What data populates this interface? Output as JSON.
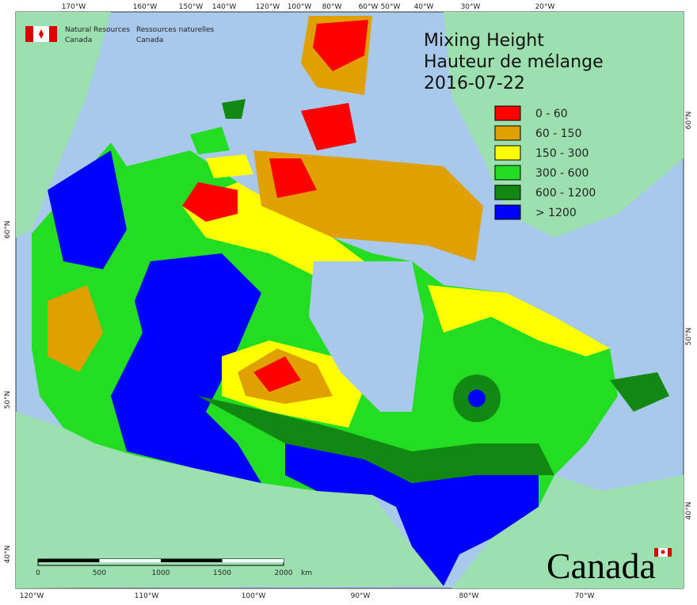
{
  "header": {
    "agency_en": [
      "Natural Resources",
      "Canada"
    ],
    "agency_fr": [
      "Ressources naturelles",
      "Canada"
    ]
  },
  "title": [
    "Mixing Height",
    "Hauteur de mélange",
    "2016-07-22"
  ],
  "legend": [
    {
      "label": "0 - 60",
      "color": "#ff0000"
    },
    {
      "label": "60 - 150",
      "color": "#e0a000"
    },
    {
      "label": "150 - 300",
      "color": "#ffff00"
    },
    {
      "label": "300 - 600",
      "color": "#22dd22"
    },
    {
      "label": "600 - 1200",
      "color": "#118811"
    },
    {
      "label": "> 1200",
      "color": "#0000ff"
    }
  ],
  "graticule": {
    "top": [
      "170°W",
      "160°W",
      "150°W",
      "140°W",
      "120°W",
      "100°W",
      "80°W",
      "60°W",
      "50°W",
      "40°W",
      "30°W",
      "20°W"
    ],
    "bottom": [
      "120°W",
      "110°W",
      "100°W",
      "90°W",
      "80°W",
      "70°W"
    ],
    "left": [
      "60°N",
      "50°N",
      "40°N"
    ],
    "right": [
      "60°N",
      "50°N",
      "40°N"
    ]
  },
  "scale_bar": {
    "labels": [
      "0",
      "500",
      "1000",
      "1500",
      "2000"
    ],
    "unit": "km"
  },
  "wordmark": "Canada"
}
